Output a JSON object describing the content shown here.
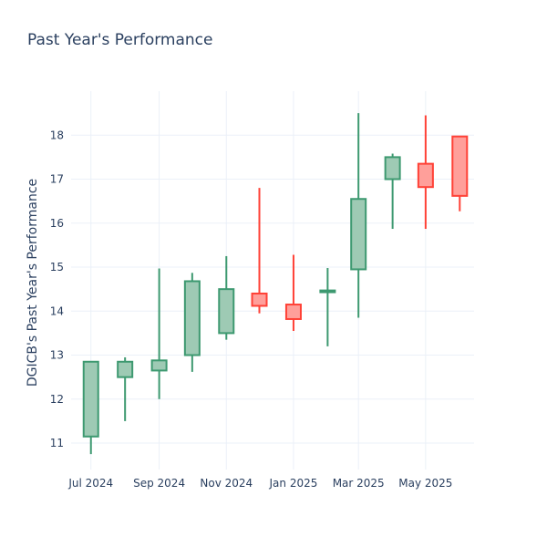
{
  "chart_data": {
    "type": "candlestick",
    "title": "Past Year's Performance",
    "xlabel": "",
    "ylabel": "DGICB's Past Year's Performance",
    "ylim": [
      10.4,
      19.0
    ],
    "yticks": [
      11,
      12,
      13,
      14,
      15,
      16,
      17,
      18
    ],
    "xticks": [
      {
        "label": "Jul 2024",
        "date": "2024-07-01"
      },
      {
        "label": "Sep 2024",
        "date": "2024-09-01"
      },
      {
        "label": "Nov 2024",
        "date": "2024-11-01"
      },
      {
        "label": "Jan 2025",
        "date": "2025-01-01"
      },
      {
        "label": "Mar 2025",
        "date": "2025-03-01"
      },
      {
        "label": "May 2025",
        "date": "2025-05-01"
      }
    ],
    "xlim": [
      "2024-06-13",
      "2025-06-14"
    ],
    "grid": true,
    "increasing_color": "#3d9970",
    "increasing_fill": "#9ecab4",
    "decreasing_color": "#ff4136",
    "decreasing_fill": "#ff9f9a",
    "candles": [
      {
        "date": "2024-07-01",
        "open": 11.15,
        "high": 12.85,
        "low": 10.75,
        "close": 12.85
      },
      {
        "date": "2024-08-01",
        "open": 12.5,
        "high": 12.95,
        "low": 11.5,
        "close": 12.85
      },
      {
        "date": "2024-09-01",
        "open": 12.65,
        "high": 14.97,
        "low": 12.0,
        "close": 12.88
      },
      {
        "date": "2024-10-01",
        "open": 13.0,
        "high": 14.87,
        "low": 12.62,
        "close": 14.68
      },
      {
        "date": "2024-11-01",
        "open": 13.5,
        "high": 15.25,
        "low": 13.35,
        "close": 14.5
      },
      {
        "date": "2024-12-01",
        "open": 14.4,
        "high": 16.8,
        "low": 13.95,
        "close": 14.12
      },
      {
        "date": "2025-01-01",
        "open": 14.15,
        "high": 15.28,
        "low": 13.55,
        "close": 13.82
      },
      {
        "date": "2025-02-01",
        "open": 14.43,
        "high": 14.98,
        "low": 13.2,
        "close": 14.47
      },
      {
        "date": "2025-03-01",
        "open": 14.95,
        "high": 18.5,
        "low": 13.85,
        "close": 16.55
      },
      {
        "date": "2025-04-01",
        "open": 17.0,
        "high": 17.58,
        "low": 15.87,
        "close": 17.5
      },
      {
        "date": "2025-05-01",
        "open": 17.35,
        "high": 18.45,
        "low": 15.87,
        "close": 16.82
      },
      {
        "date": "2025-06-01",
        "open": 17.97,
        "high": 17.97,
        "low": 16.27,
        "close": 16.62
      }
    ]
  }
}
